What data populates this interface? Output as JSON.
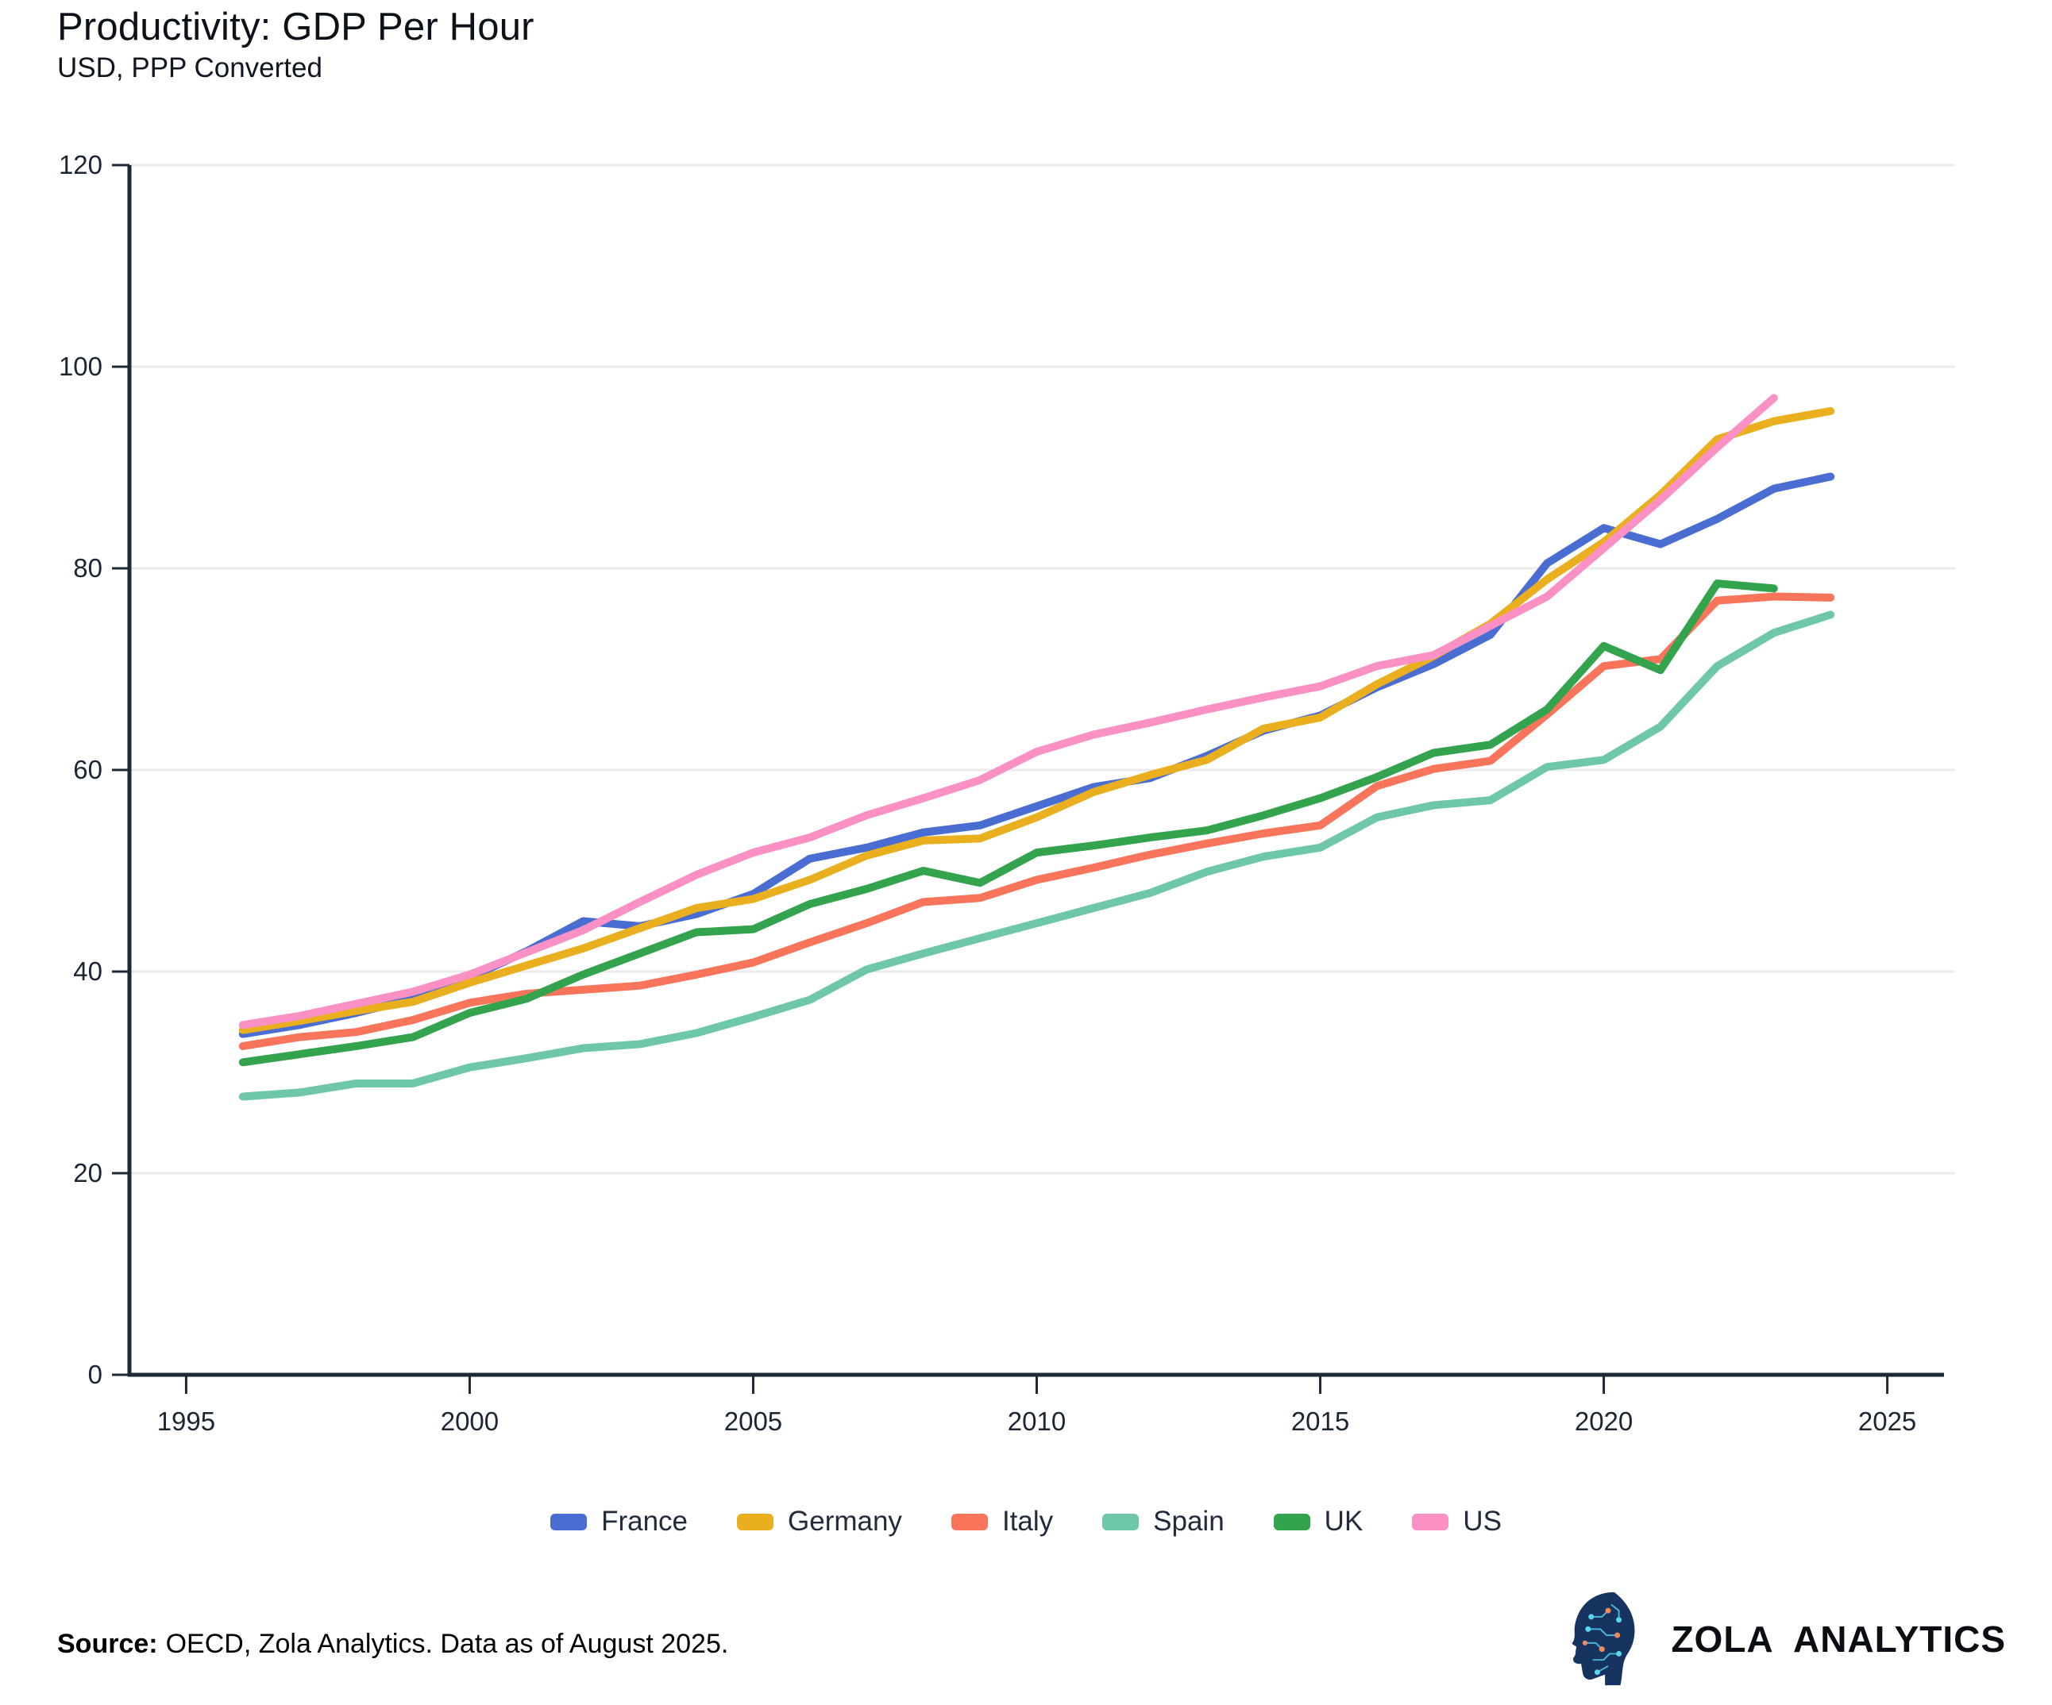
{
  "title": "Productivity: GDP Per Hour",
  "subtitle": "USD, PPP Converted",
  "source": {
    "label": "Source:",
    "text": "OECD, Zola Analytics. Data as of August 2025."
  },
  "brand": {
    "name": "ZOLA ANALYTICS",
    "icon": "circuit-head-logo"
  },
  "colors": {
    "axis": "#1e2836",
    "tick_text": "#1c2633",
    "gridline": "#ebebee",
    "legend_text": "#222b3a"
  },
  "chart_data": {
    "type": "line",
    "title": "Productivity: GDP Per Hour",
    "subtitle": "USD, PPP Converted",
    "xlabel": "",
    "ylabel": "",
    "xlim": [
      1994,
      2026
    ],
    "ylim": [
      0,
      120
    ],
    "xticks": [
      1995,
      2000,
      2005,
      2010,
      2015,
      2020,
      2025
    ],
    "yticks": [
      0,
      20,
      40,
      60,
      80,
      100,
      120
    ],
    "grid": "horizontal",
    "legend_position": "bottom-center",
    "series": [
      {
        "name": "France",
        "color": "#4a6dd2",
        "years": [
          1996,
          1997,
          1998,
          1999,
          2000,
          2001,
          2002,
          2003,
          2004,
          2005,
          2006,
          2007,
          2008,
          2009,
          2010,
          2011,
          2012,
          2013,
          2014,
          2015,
          2016,
          2017,
          2018,
          2019,
          2020,
          2021,
          2022,
          2023,
          2024
        ],
        "values": [
          33.8,
          34.7,
          35.9,
          37.3,
          39.4,
          42.0,
          45.0,
          44.5,
          45.7,
          47.7,
          51.2,
          52.3,
          53.8,
          54.5,
          56.4,
          58.3,
          59.2,
          61.4,
          63.9,
          65.4,
          68.2,
          70.5,
          73.4,
          80.5,
          84.0,
          82.4,
          84.9,
          87.9,
          89.1
        ]
      },
      {
        "name": "Germany",
        "color": "#eaaf1f",
        "years": [
          1996,
          1997,
          1998,
          1999,
          2000,
          2001,
          2002,
          2003,
          2004,
          2005,
          2006,
          2007,
          2008,
          2009,
          2010,
          2011,
          2012,
          2013,
          2014,
          2015,
          2016,
          2017,
          2018,
          2019,
          2020,
          2021,
          2022,
          2023,
          2024
        ],
        "values": [
          34.2,
          35.1,
          36.1,
          37.0,
          38.9,
          40.6,
          42.3,
          44.3,
          46.3,
          47.2,
          49.1,
          51.5,
          53.0,
          53.2,
          55.3,
          57.8,
          59.5,
          61.0,
          64.1,
          65.2,
          68.5,
          71.3,
          74.5,
          78.9,
          82.6,
          87.3,
          92.8,
          94.6,
          95.6
        ]
      },
      {
        "name": "Italy",
        "color": "#f8755c",
        "years": [
          1996,
          1997,
          1998,
          1999,
          2000,
          2001,
          2002,
          2003,
          2004,
          2005,
          2006,
          2007,
          2008,
          2009,
          2010,
          2011,
          2012,
          2013,
          2014,
          2015,
          2016,
          2017,
          2018,
          2019,
          2020,
          2021,
          2022,
          2023,
          2024
        ],
        "values": [
          32.6,
          33.5,
          34.0,
          35.2,
          36.9,
          37.8,
          38.2,
          38.6,
          39.7,
          40.9,
          42.9,
          44.8,
          46.9,
          47.3,
          49.1,
          50.3,
          51.6,
          52.7,
          53.7,
          54.5,
          58.4,
          60.1,
          60.9,
          65.5,
          70.3,
          71.0,
          76.8,
          77.2,
          77.1
        ]
      },
      {
        "name": "Spain",
        "color": "#6ec7a8",
        "years": [
          1996,
          1997,
          1998,
          1999,
          2000,
          2001,
          2002,
          2003,
          2004,
          2005,
          2006,
          2007,
          2008,
          2009,
          2010,
          2011,
          2012,
          2013,
          2014,
          2015,
          2016,
          2017,
          2018,
          2019,
          2020,
          2021,
          2022,
          2023,
          2024
        ],
        "values": [
          27.6,
          28.0,
          28.9,
          28.9,
          30.5,
          31.4,
          32.4,
          32.8,
          33.9,
          35.5,
          37.2,
          40.2,
          41.8,
          43.3,
          44.8,
          46.3,
          47.8,
          49.9,
          51.4,
          52.3,
          55.3,
          56.5,
          57.0,
          60.3,
          61.0,
          64.3,
          70.3,
          73.6,
          75.4
        ]
      },
      {
        "name": "UK",
        "color": "#33a34d",
        "years": [
          1996,
          1997,
          1998,
          1999,
          2000,
          2001,
          2002,
          2003,
          2004,
          2005,
          2006,
          2007,
          2008,
          2009,
          2010,
          2011,
          2012,
          2013,
          2014,
          2015,
          2016,
          2017,
          2018,
          2019,
          2020,
          2021,
          2022,
          2023
        ],
        "values": [
          31.0,
          31.8,
          32.6,
          33.5,
          35.9,
          37.3,
          39.7,
          41.8,
          43.9,
          44.2,
          46.7,
          48.2,
          50.0,
          48.8,
          51.8,
          52.5,
          53.3,
          54.0,
          55.5,
          57.2,
          59.3,
          61.7,
          62.5,
          66.0,
          72.3,
          69.9,
          78.5,
          78.0
        ]
      },
      {
        "name": "US",
        "color": "#fa90c3",
        "years": [
          1996,
          1997,
          1998,
          1999,
          2000,
          2001,
          2002,
          2003,
          2004,
          2005,
          2006,
          2007,
          2008,
          2009,
          2010,
          2011,
          2012,
          2013,
          2014,
          2015,
          2016,
          2017,
          2018,
          2019,
          2020,
          2021,
          2022,
          2023
        ],
        "values": [
          34.7,
          35.6,
          36.8,
          38.0,
          39.7,
          41.9,
          44.1,
          46.9,
          49.6,
          51.8,
          53.3,
          55.5,
          57.2,
          59.0,
          61.8,
          63.5,
          64.7,
          66.0,
          67.2,
          68.3,
          70.3,
          71.4,
          74.3,
          77.2,
          82.0,
          86.8,
          92.0,
          96.9
        ]
      }
    ]
  }
}
